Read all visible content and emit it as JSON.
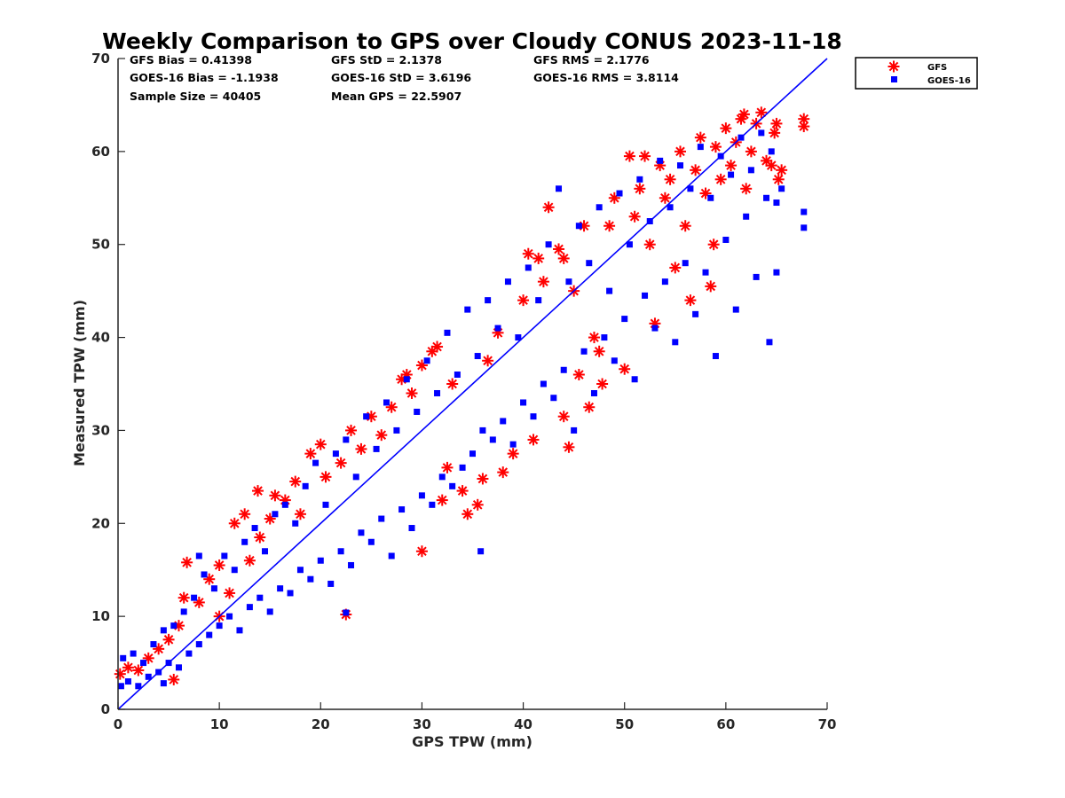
{
  "chart_data": {
    "type": "scatter",
    "title": "Weekly Comparison to GPS over Cloudy CONUS 2023-11-18",
    "xlabel": "GPS TPW (mm)",
    "ylabel": "Measured TPW (mm)",
    "xlim": [
      0,
      70
    ],
    "ylim": [
      0,
      70
    ],
    "xticks": [
      "0",
      "10",
      "20",
      "30",
      "40",
      "50",
      "60",
      "70"
    ],
    "yticks": [
      "0",
      "10",
      "20",
      "30",
      "40",
      "50",
      "60",
      "70"
    ],
    "grid": false,
    "legend_position": "outside-top-right",
    "reference_line": {
      "from": [
        0,
        0
      ],
      "to": [
        70,
        70
      ],
      "color": "#0000ff"
    },
    "stats": [
      [
        "GFS Bias = 0.41398",
        "GFS StD = 2.1378",
        "GFS RMS = 2.1776"
      ],
      [
        "GOES-16 Bias = -1.1938",
        "GOES-16 StD = 3.6196",
        "GOES-16 RMS = 3.8114"
      ],
      [
        "Sample Size = 40405",
        "Mean GPS = 22.5907",
        ""
      ]
    ],
    "series": [
      {
        "name": "GFS",
        "marker": "asterisk",
        "color": "#ff0000",
        "points": [
          [
            0.2,
            3.8
          ],
          [
            1.0,
            4.5
          ],
          [
            2.0,
            4.2
          ],
          [
            3.0,
            5.5
          ],
          [
            4.0,
            6.5
          ],
          [
            5.5,
            3.2
          ],
          [
            5.0,
            7.5
          ],
          [
            6.0,
            9.0
          ],
          [
            6.8,
            15.8
          ],
          [
            6.5,
            12.0
          ],
          [
            8.0,
            11.5
          ],
          [
            9.0,
            14.0
          ],
          [
            10.0,
            15.5
          ],
          [
            10.0,
            10.0
          ],
          [
            11.0,
            12.5
          ],
          [
            11.5,
            20.0
          ],
          [
            12.5,
            21.0
          ],
          [
            13.0,
            16.0
          ],
          [
            13.8,
            23.5
          ],
          [
            14.0,
            18.5
          ],
          [
            15.0,
            20.5
          ],
          [
            15.5,
            23.0
          ],
          [
            16.5,
            22.5
          ],
          [
            17.5,
            24.5
          ],
          [
            18.0,
            21.0
          ],
          [
            19.0,
            27.5
          ],
          [
            20.0,
            28.5
          ],
          [
            20.5,
            25.0
          ],
          [
            22.0,
            26.5
          ],
          [
            22.5,
            10.2
          ],
          [
            23.0,
            30.0
          ],
          [
            24.0,
            28.0
          ],
          [
            25.0,
            31.5
          ],
          [
            26.0,
            29.5
          ],
          [
            27.0,
            32.5
          ],
          [
            28.0,
            35.5
          ],
          [
            28.5,
            36.0
          ],
          [
            29.0,
            34.0
          ],
          [
            30.0,
            37.0
          ],
          [
            30.0,
            17.0
          ],
          [
            31.0,
            38.5
          ],
          [
            31.5,
            39.0
          ],
          [
            32.0,
            22.5
          ],
          [
            32.5,
            26.0
          ],
          [
            33.0,
            35.0
          ],
          [
            34.0,
            23.5
          ],
          [
            34.5,
            21.0
          ],
          [
            35.5,
            22.0
          ],
          [
            36.0,
            24.8
          ],
          [
            36.5,
            37.5
          ],
          [
            37.5,
            40.5
          ],
          [
            38.0,
            25.5
          ],
          [
            39.0,
            27.5
          ],
          [
            40.0,
            44.0
          ],
          [
            40.5,
            49.0
          ],
          [
            41.0,
            29.0
          ],
          [
            41.5,
            48.5
          ],
          [
            42.0,
            46.0
          ],
          [
            42.5,
            54.0
          ],
          [
            43.5,
            49.5
          ],
          [
            44.0,
            48.5
          ],
          [
            44.0,
            31.5
          ],
          [
            44.5,
            28.2
          ],
          [
            45.0,
            45.0
          ],
          [
            45.5,
            36.0
          ],
          [
            46.0,
            52.0
          ],
          [
            46.5,
            32.5
          ],
          [
            47.0,
            40.0
          ],
          [
            47.5,
            38.5
          ],
          [
            47.8,
            35.0
          ],
          [
            48.5,
            52.0
          ],
          [
            49.0,
            55.0
          ],
          [
            50.0,
            36.6
          ],
          [
            50.5,
            59.5
          ],
          [
            51.0,
            53.0
          ],
          [
            51.5,
            56.0
          ],
          [
            52.0,
            59.5
          ],
          [
            52.5,
            50.0
          ],
          [
            53.0,
            41.5
          ],
          [
            53.5,
            58.5
          ],
          [
            54.0,
            55.0
          ],
          [
            54.5,
            57.0
          ],
          [
            55.0,
            47.5
          ],
          [
            55.5,
            60.0
          ],
          [
            56.0,
            52.0
          ],
          [
            56.5,
            44.0
          ],
          [
            57.0,
            58.0
          ],
          [
            57.5,
            61.5
          ],
          [
            58.0,
            55.5
          ],
          [
            58.5,
            45.5
          ],
          [
            58.8,
            50.0
          ],
          [
            59.0,
            60.5
          ],
          [
            59.5,
            57.0
          ],
          [
            60.0,
            62.5
          ],
          [
            60.5,
            58.5
          ],
          [
            61.0,
            61.0
          ],
          [
            61.5,
            63.5
          ],
          [
            61.8,
            64.0
          ],
          [
            62.0,
            56.0
          ],
          [
            62.5,
            60.0
          ],
          [
            63.0,
            63.0
          ],
          [
            63.5,
            64.2
          ],
          [
            64.0,
            59.0
          ],
          [
            64.5,
            58.5
          ],
          [
            64.8,
            62.0
          ],
          [
            65.0,
            63.0
          ],
          [
            65.2,
            57.0
          ],
          [
            65.5,
            58.0
          ],
          [
            67.7,
            63.5
          ],
          [
            67.7,
            62.7
          ]
        ]
      },
      {
        "name": "GOES-16",
        "marker": "square",
        "color": "#0000ff",
        "points": [
          [
            0.3,
            2.5
          ],
          [
            0.5,
            5.5
          ],
          [
            1.0,
            3.0
          ],
          [
            1.5,
            6.0
          ],
          [
            2.0,
            2.5
          ],
          [
            2.5,
            5.0
          ],
          [
            3.0,
            3.5
          ],
          [
            3.5,
            7.0
          ],
          [
            4.0,
            4.0
          ],
          [
            4.5,
            8.5
          ],
          [
            5.0,
            5.0
          ],
          [
            5.5,
            9.0
          ],
          [
            6.0,
            4.5
          ],
          [
            6.5,
            10.5
          ],
          [
            7.0,
            6.0
          ],
          [
            7.5,
            12.0
          ],
          [
            8.0,
            7.0
          ],
          [
            8.5,
            14.5
          ],
          [
            9.0,
            8.0
          ],
          [
            9.5,
            13.0
          ],
          [
            10.0,
            9.0
          ],
          [
            10.5,
            16.5
          ],
          [
            11.0,
            10.0
          ],
          [
            11.5,
            15.0
          ],
          [
            12.0,
            8.5
          ],
          [
            12.5,
            18.0
          ],
          [
            13.0,
            11.0
          ],
          [
            13.5,
            19.5
          ],
          [
            14.0,
            12.0
          ],
          [
            14.5,
            17.0
          ],
          [
            15.0,
            10.5
          ],
          [
            15.5,
            21.0
          ],
          [
            16.0,
            13.0
          ],
          [
            16.5,
            22.0
          ],
          [
            17.0,
            12.5
          ],
          [
            17.5,
            20.0
          ],
          [
            18.0,
            15.0
          ],
          [
            18.5,
            24.0
          ],
          [
            19.0,
            14.0
          ],
          [
            19.5,
            26.5
          ],
          [
            20.0,
            16.0
          ],
          [
            20.5,
            22.0
          ],
          [
            21.0,
            13.5
          ],
          [
            21.5,
            27.5
          ],
          [
            22.0,
            17.0
          ],
          [
            22.5,
            29.0
          ],
          [
            23.0,
            15.5
          ],
          [
            23.5,
            25.0
          ],
          [
            24.0,
            19.0
          ],
          [
            24.5,
            31.5
          ],
          [
            25.0,
            18.0
          ],
          [
            25.5,
            28.0
          ],
          [
            26.0,
            20.5
          ],
          [
            26.5,
            33.0
          ],
          [
            27.0,
            16.5
          ],
          [
            27.5,
            30.0
          ],
          [
            28.0,
            21.5
          ],
          [
            28.5,
            35.5
          ],
          [
            29.0,
            19.5
          ],
          [
            29.5,
            32.0
          ],
          [
            30.0,
            23.0
          ],
          [
            30.5,
            37.5
          ],
          [
            31.0,
            22.0
          ],
          [
            31.5,
            34.0
          ],
          [
            32.0,
            25.0
          ],
          [
            32.5,
            40.5
          ],
          [
            33.0,
            24.0
          ],
          [
            33.5,
            36.0
          ],
          [
            34.0,
            26.0
          ],
          [
            34.5,
            43.0
          ],
          [
            35.0,
            27.5
          ],
          [
            35.5,
            38.0
          ],
          [
            35.8,
            17.0
          ],
          [
            36.0,
            30.0
          ],
          [
            36.5,
            44.0
          ],
          [
            37.0,
            29.0
          ],
          [
            37.5,
            41.0
          ],
          [
            38.0,
            31.0
          ],
          [
            38.5,
            46.0
          ],
          [
            39.0,
            28.5
          ],
          [
            39.5,
            40.0
          ],
          [
            40.0,
            33.0
          ],
          [
            40.5,
            47.5
          ],
          [
            41.0,
            31.5
          ],
          [
            41.5,
            44.0
          ],
          [
            42.0,
            35.0
          ],
          [
            42.5,
            50.0
          ],
          [
            43.0,
            33.5
          ],
          [
            43.5,
            56.0
          ],
          [
            44.0,
            36.5
          ],
          [
            44.5,
            46.0
          ],
          [
            45.0,
            30.0
          ],
          [
            45.5,
            52.0
          ],
          [
            46.0,
            38.5
          ],
          [
            46.5,
            48.0
          ],
          [
            47.0,
            34.0
          ],
          [
            47.5,
            54.0
          ],
          [
            48.0,
            40.0
          ],
          [
            48.5,
            45.0
          ],
          [
            49.0,
            37.5
          ],
          [
            49.5,
            55.5
          ],
          [
            50.0,
            42.0
          ],
          [
            50.5,
            50.0
          ],
          [
            51.0,
            35.5
          ],
          [
            51.5,
            57.0
          ],
          [
            52.0,
            44.5
          ],
          [
            52.5,
            52.5
          ],
          [
            53.0,
            41.0
          ],
          [
            53.5,
            59.0
          ],
          [
            54.0,
            46.0
          ],
          [
            54.5,
            54.0
          ],
          [
            55.0,
            39.5
          ],
          [
            55.5,
            58.5
          ],
          [
            56.0,
            48.0
          ],
          [
            56.5,
            56.0
          ],
          [
            57.0,
            42.5
          ],
          [
            57.5,
            60.5
          ],
          [
            58.0,
            47.0
          ],
          [
            58.5,
            55.0
          ],
          [
            59.0,
            38.0
          ],
          [
            59.5,
            59.5
          ],
          [
            60.0,
            50.5
          ],
          [
            60.5,
            57.5
          ],
          [
            61.0,
            43.0
          ],
          [
            61.5,
            61.5
          ],
          [
            62.0,
            53.0
          ],
          [
            62.5,
            58.0
          ],
          [
            63.0,
            46.5
          ],
          [
            63.5,
            62.0
          ],
          [
            64.0,
            55.0
          ],
          [
            64.3,
            39.5
          ],
          [
            64.5,
            60.0
          ],
          [
            65.0,
            54.5
          ],
          [
            65.0,
            47.0
          ],
          [
            65.5,
            56.0
          ],
          [
            67.7,
            53.5
          ],
          [
            67.7,
            51.8
          ],
          [
            22.5,
            10.4
          ],
          [
            4.5,
            2.8
          ],
          [
            8.0,
            16.5
          ]
        ]
      }
    ]
  }
}
